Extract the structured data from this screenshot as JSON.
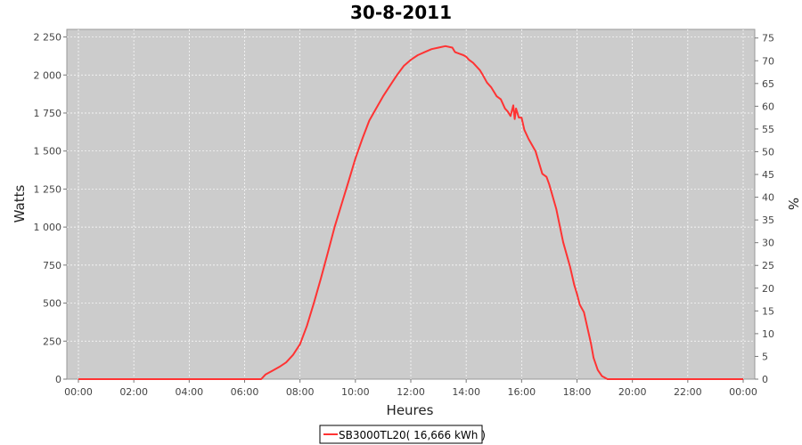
{
  "chart_data": {
    "type": "line",
    "title": "30-8-2011",
    "xlabel": "Heures",
    "ylabel": "Watts",
    "y2label": "%",
    "x_ticks": [
      "00:00",
      "02:00",
      "04:00",
      "06:00",
      "08:00",
      "10:00",
      "12:00",
      "14:00",
      "16:00",
      "18:00",
      "20:00",
      "22:00",
      "00:00"
    ],
    "xlim": [
      0,
      24
    ],
    "ylim": [
      0,
      2300
    ],
    "y_ticks": [
      0,
      250,
      500,
      750,
      1000,
      1250,
      1500,
      1750,
      2000,
      2250
    ],
    "y_tick_labels": [
      "0",
      "250",
      "500",
      "750",
      "1 000",
      "1 250",
      "1 500",
      "1 750",
      "2 000",
      "2 250"
    ],
    "y2lim": [
      0,
      76.9
    ],
    "y2_ticks": [
      0,
      5,
      10,
      15,
      20,
      25,
      30,
      35,
      40,
      45,
      50,
      55,
      60,
      65,
      70,
      75
    ],
    "grid": true,
    "legend_position": "bottom-center",
    "colors": {
      "series": "#ff3333",
      "plot_bg": "#cccccc",
      "grid": "#ffffff"
    },
    "series": [
      {
        "name": "SB3000TL20( 16,666 kWh )",
        "x": [
          0,
          6.6,
          6.75,
          7.0,
          7.25,
          7.5,
          7.75,
          8.0,
          8.25,
          8.5,
          8.75,
          9.0,
          9.25,
          9.5,
          9.75,
          10.0,
          10.25,
          10.5,
          10.75,
          11.0,
          11.25,
          11.5,
          11.75,
          12.0,
          12.25,
          12.5,
          12.75,
          13.0,
          13.25,
          13.5,
          13.6,
          13.75,
          13.9,
          14.0,
          14.1,
          14.25,
          14.4,
          14.5,
          14.6,
          14.75,
          14.9,
          15.0,
          15.1,
          15.25,
          15.4,
          15.5,
          15.6,
          15.7,
          15.75,
          15.8,
          15.9,
          16.0,
          16.1,
          16.25,
          16.5,
          16.75,
          16.9,
          17.0,
          17.25,
          17.5,
          17.75,
          17.9,
          18.0,
          18.1,
          18.25,
          18.4,
          18.5,
          18.6,
          18.75,
          18.9,
          19.0,
          19.1,
          19.25,
          19.4,
          19.5,
          22.0,
          24.0
        ],
        "y": [
          0,
          0,
          30,
          55,
          80,
          110,
          160,
          230,
          350,
          500,
          660,
          830,
          1000,
          1150,
          1300,
          1450,
          1580,
          1700,
          1780,
          1860,
          1930,
          2000,
          2060,
          2100,
          2130,
          2150,
          2170,
          2180,
          2190,
          2180,
          2150,
          2140,
          2130,
          2120,
          2100,
          2080,
          2050,
          2030,
          2000,
          1950,
          1920,
          1890,
          1860,
          1840,
          1780,
          1760,
          1730,
          1800,
          1710,
          1780,
          1720,
          1720,
          1640,
          1580,
          1500,
          1350,
          1330,
          1280,
          1120,
          900,
          740,
          620,
          560,
          490,
          440,
          320,
          240,
          140,
          60,
          20,
          10,
          0,
          0,
          0,
          0,
          0,
          0
        ]
      }
    ]
  }
}
